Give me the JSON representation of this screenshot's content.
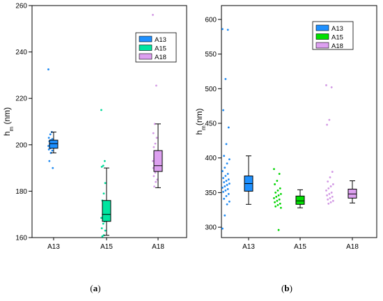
{
  "chart_data": [
    {
      "type": "box",
      "caption": "(a)",
      "ylabel_main": "h",
      "ylabel_sub": "m",
      "ylabel_unit": " (nm)",
      "ylim": [
        160,
        260
      ],
      "yticks": [
        160,
        180,
        200,
        220,
        240,
        260
      ],
      "categories": [
        "A13",
        "A15",
        "A18"
      ],
      "legend": {
        "placement": "top-right",
        "items": [
          "A13",
          "A15",
          "A18"
        ]
      },
      "series": [
        {
          "name": "A13",
          "color": "#1e90ff",
          "box": {
            "whisker_low": 196.5,
            "q1": 198.5,
            "median": 200.5,
            "q3": 202,
            "whisker_high": 205.5
          },
          "points": [
            232.5,
            205.5,
            204.5,
            203,
            202.5,
            202,
            201.5,
            201,
            200.5,
            200,
            199.5,
            199,
            198.5,
            198,
            197.5,
            196.5,
            193,
            190
          ]
        },
        {
          "name": "A15",
          "color": "#00e5a0",
          "box": {
            "whisker_low": 161,
            "q1": 167,
            "median": 170,
            "q3": 176,
            "whisker_high": 190
          },
          "points": [
            215,
            193,
            191,
            190.5,
            183.5,
            179,
            176,
            174,
            172,
            170,
            168.5,
            167,
            166,
            164,
            163,
            161,
            160.5
          ]
        },
        {
          "name": "A18",
          "color": "#dda0f0",
          "box": {
            "whisker_low": 181.5,
            "q1": 188.5,
            "median": 191,
            "q3": 197.5,
            "whisker_high": 209
          },
          "points": [
            256,
            225.5,
            209,
            205,
            203,
            200.5,
            199,
            197,
            195.5,
            194,
            193,
            192,
            191,
            190,
            189,
            188,
            186.5,
            185,
            184,
            182
          ]
        }
      ]
    },
    {
      "type": "box",
      "caption": "(b)",
      "ylabel_main": "h",
      "ylabel_sub": "m",
      "ylabel_unit": "(nm)",
      "ylim": [
        285,
        620
      ],
      "yticks": [
        300,
        350,
        400,
        450,
        500,
        550,
        600
      ],
      "categories": [
        "A13",
        "A15",
        "A18"
      ],
      "legend": {
        "placement": "top-right",
        "items": [
          "A13",
          "A15",
          "A18"
        ]
      },
      "series": [
        {
          "name": "A13",
          "color": "#1e90ff",
          "box": {
            "whisker_low": 333,
            "q1": 352,
            "median": 363,
            "q3": 374,
            "whisker_high": 403
          },
          "points": [
            586,
            585,
            514,
            469,
            444,
            420,
            403,
            398,
            392,
            386,
            381,
            377,
            374,
            371,
            369,
            367,
            365,
            363,
            361,
            359,
            357,
            355,
            353,
            351,
            348,
            345,
            341,
            337,
            333,
            317,
            298
          ]
        },
        {
          "name": "A15",
          "color": "#00e000",
          "box": {
            "whisker_low": 328,
            "q1": 333,
            "median": 338,
            "q3": 345,
            "whisker_high": 354
          },
          "points": [
            384,
            377,
            367,
            362,
            356,
            353,
            350,
            348,
            346,
            344,
            342,
            340,
            338,
            336,
            334,
            332,
            330,
            328,
            296
          ]
        },
        {
          "name": "A18",
          "color": "#dda0f0",
          "box": {
            "whisker_low": 335,
            "q1": 342,
            "median": 348,
            "q3": 355,
            "whisker_high": 367
          },
          "points": [
            505,
            502,
            455,
            448,
            380,
            372,
            366,
            362,
            359,
            356,
            353,
            350,
            348,
            346,
            344,
            342,
            340,
            338,
            336,
            334
          ]
        }
      ]
    }
  ]
}
